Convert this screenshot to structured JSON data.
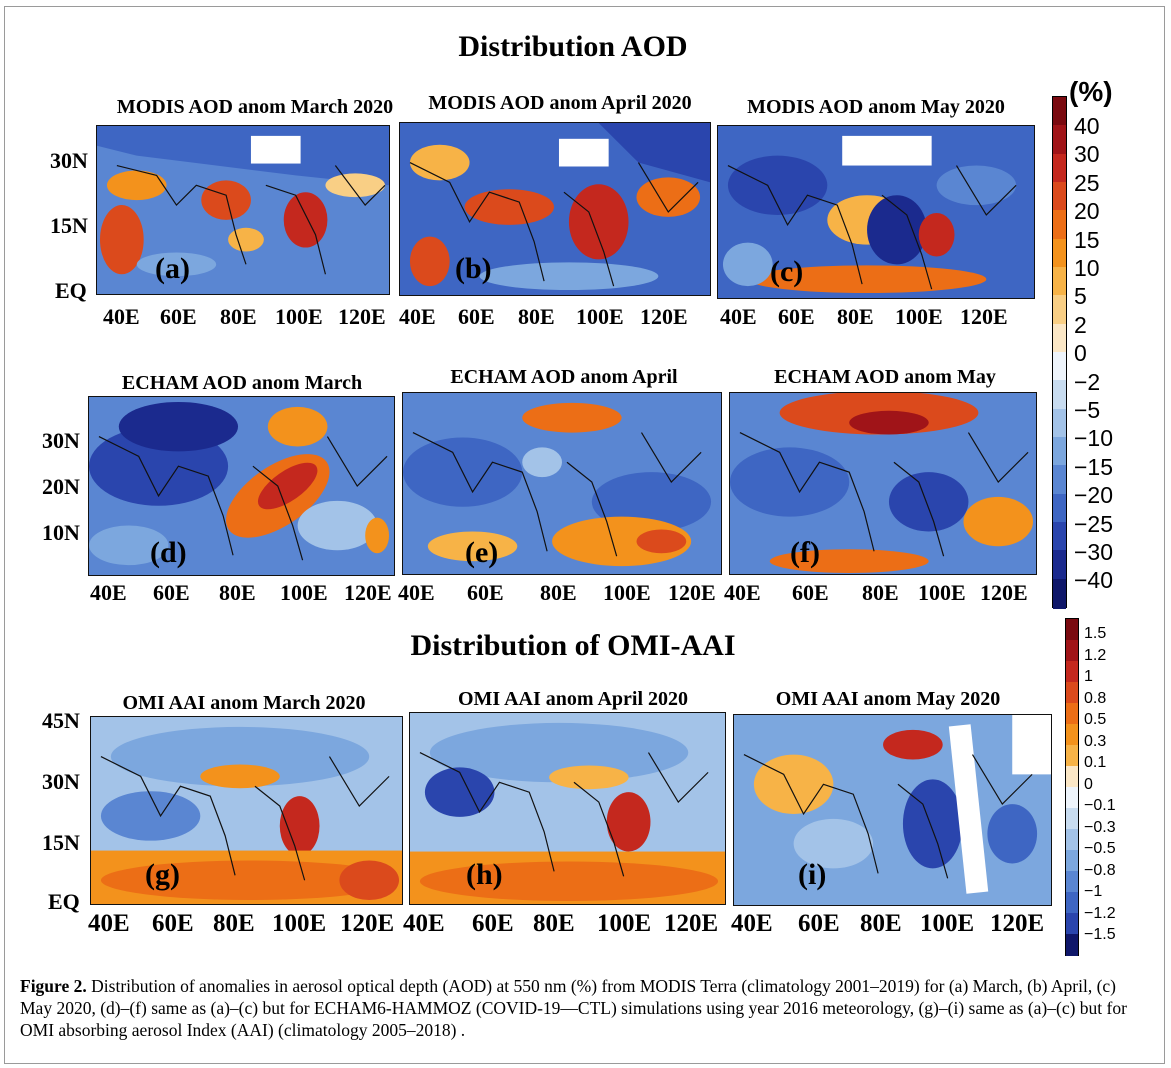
{
  "figure": {
    "top_title": "Distribution AOD",
    "bottom_title": "Distribution of OMI-AAI",
    "caption_label": "Figure 2.",
    "caption_text": " Distribution of anomalies in aerosol optical depth (AOD) at 550 nm (%) from MODIS Terra (climatology 2001–2019) for (a) March, (b) April, (c) May 2020, (d)–(f) same as (a)–(c) but for ECHAM6-HAMMOZ (COVID-19—CTL) simulations using year 2016 meteorology, (g)–(i) same as (a)–(c) but for OMI absorbing aerosol Index (AAI) (climatology 2005–2018) ."
  },
  "panels": [
    {
      "letter": "(a)",
      "title": "MODIS AOD anom March 2020"
    },
    {
      "letter": "(b)",
      "title": "MODIS AOD anom April 2020"
    },
    {
      "letter": "(c)",
      "title": "MODIS AOD anom May 2020"
    },
    {
      "letter": "(d)",
      "title": "ECHAM AOD anom March"
    },
    {
      "letter": "(e)",
      "title": "ECHAM AOD anom April"
    },
    {
      "letter": "(f)",
      "title": "ECHAM AOD anom May"
    },
    {
      "letter": "(g)",
      "title": "OMI AAI anom March 2020"
    },
    {
      "letter": "(h)",
      "title": "OMI AAI anom April 2020"
    },
    {
      "letter": "(i)",
      "title": "OMI AAI anom May 2020"
    }
  ],
  "axes": {
    "row1_x": [
      "40E",
      "60E",
      "80E",
      "100E",
      "120E"
    ],
    "row1_y": [
      "30N",
      "15N",
      "EQ"
    ],
    "row2_x": [
      "40E",
      "60E",
      "80E",
      "100E",
      "120E"
    ],
    "row2_y": [
      "30N",
      "20N",
      "10N"
    ],
    "row3_x": [
      "40E",
      "60E",
      "80E",
      "100E",
      "120E"
    ],
    "row3_y": [
      "45N",
      "30N",
      "15N",
      "EQ"
    ]
  },
  "colorbar_aod": {
    "unit": "(%)",
    "labels": [
      "40",
      "30",
      "25",
      "20",
      "15",
      "10",
      "5",
      "2",
      "0",
      "−2",
      "−5",
      "−10",
      "−15",
      "−20",
      "−25",
      "−30",
      "−40"
    ],
    "colors": [
      "#7a0a10",
      "#a01418",
      "#c4281e",
      "#db4a1c",
      "#ec6e16",
      "#f3921c",
      "#f7b347",
      "#f9cf85",
      "#fbe7c6",
      "#eef4fb",
      "#c8dcf0",
      "#a3c3e8",
      "#7ca7de",
      "#5a86d2",
      "#3e66c3",
      "#2a45ad",
      "#1b2a8e",
      "#0f176a"
    ]
  },
  "colorbar_aai": {
    "labels": [
      "1.5",
      "1.2",
      "1",
      "0.8",
      "0.5",
      "0.3",
      "0.1",
      "0",
      "−0.1",
      "−0.3",
      "−0.5",
      "−0.8",
      "−1",
      "−1.2",
      "−1.5"
    ],
    "colors": [
      "#7a0a10",
      "#a01418",
      "#c4281e",
      "#db4a1c",
      "#ec6e16",
      "#f3921c",
      "#f7b347",
      "#fbe7c6",
      "#eef4fb",
      "#c8dcf0",
      "#a3c3e8",
      "#7ca7de",
      "#5a86d2",
      "#3e66c3",
      "#2a45ad",
      "#0f176a"
    ]
  }
}
